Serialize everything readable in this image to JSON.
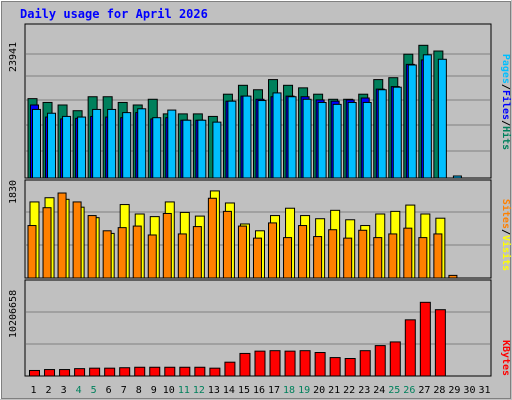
{
  "chart_data": [
    {
      "type": "bar",
      "title": "Daily usage for April 2026",
      "panel": "hits-files-pages",
      "ymax_label": "23941",
      "ymax": 23941,
      "categories": [
        "1",
        "2",
        "3",
        "4",
        "5",
        "6",
        "7",
        "8",
        "9",
        "10",
        "11",
        "12",
        "13",
        "14",
        "15",
        "16",
        "17",
        "18",
        "19",
        "20",
        "21",
        "22",
        "23",
        "24",
        "25",
        "26",
        "27",
        "28",
        "29",
        "30",
        "31"
      ],
      "legend": [
        "Pages",
        "Files",
        "Hits"
      ],
      "series": [
        {
          "name": "Hits",
          "color": "#00805c",
          "values": [
            12500,
            11900,
            11500,
            10600,
            12800,
            12800,
            11900,
            11500,
            12400,
            10100,
            10100,
            10100,
            9700,
            13200,
            14600,
            13900,
            15500,
            14600,
            14200,
            13200,
            12400,
            12400,
            13200,
            15500,
            15800,
            19500,
            20900,
            20000,
            0,
            0,
            0
          ]
        },
        {
          "name": "Files",
          "color": "#0000ff",
          "values": [
            11500,
            9600,
            9300,
            9400,
            9700,
            9600,
            9500,
            10300,
            9300,
            9500,
            9100,
            9100,
            0,
            12100,
            12900,
            12400,
            12800,
            12900,
            12800,
            12300,
            12100,
            12300,
            12600,
            14000,
            14400,
            17900,
            18600,
            0,
            0,
            0,
            0
          ]
        },
        {
          "name": "Pages",
          "color": "#00bfff",
          "values": [
            10800,
            10200,
            9700,
            9600,
            10800,
            10800,
            10300,
            10900,
            9500,
            10700,
            9100,
            9100,
            8800,
            12100,
            12900,
            12200,
            13400,
            12800,
            12400,
            11900,
            11600,
            11900,
            11900,
            13900,
            14300,
            17800,
            19400,
            18700,
            300,
            0,
            0
          ]
        }
      ]
    },
    {
      "type": "bar",
      "panel": "sites-visits",
      "ymax_label": "1830",
      "ymax": 1830,
      "categories": [
        "1",
        "2",
        "3",
        "4",
        "5",
        "6",
        "7",
        "8",
        "9",
        "10",
        "11",
        "12",
        "13",
        "14",
        "15",
        "16",
        "17",
        "18",
        "19",
        "20",
        "21",
        "22",
        "23",
        "24",
        "25",
        "26",
        "27",
        "28",
        "29",
        "30",
        "31"
      ],
      "legend": [
        "Sites",
        "Visits"
      ],
      "series": [
        {
          "name": "Visits",
          "color": "#ffff00",
          "values": [
            1450,
            1530,
            1500,
            1350,
            1150,
            850,
            1400,
            1220,
            1170,
            1450,
            1250,
            1180,
            1660,
            1430,
            1030,
            900,
            1190,
            1330,
            1190,
            1130,
            1290,
            1110,
            1000,
            1220,
            1270,
            1390,
            1220,
            1140,
            0,
            0,
            0
          ]
        },
        {
          "name": "Sites",
          "color": "#ff8000",
          "values": [
            1000,
            1340,
            1620,
            1450,
            1190,
            900,
            960,
            990,
            820,
            1230,
            840,
            980,
            1520,
            1270,
            990,
            760,
            1050,
            770,
            1000,
            790,
            920,
            760,
            910,
            770,
            840,
            950,
            770,
            840,
            50,
            0,
            0
          ]
        }
      ]
    },
    {
      "type": "bar",
      "panel": "kbytes",
      "ymax_label": "10206658",
      "ymax": 10206658,
      "categories": [
        "1",
        "2",
        "3",
        "4",
        "5",
        "6",
        "7",
        "8",
        "9",
        "10",
        "11",
        "12",
        "13",
        "14",
        "15",
        "16",
        "17",
        "18",
        "19",
        "20",
        "21",
        "22",
        "23",
        "24",
        "25",
        "26",
        "27",
        "28",
        "29",
        "30",
        "31"
      ],
      "legend": [
        "KBytes"
      ],
      "series": [
        {
          "name": "KBytes",
          "color": "#ff0000",
          "values": [
            600000,
            700000,
            700000,
            800000,
            850000,
            850000,
            900000,
            950000,
            950000,
            950000,
            950000,
            950000,
            850000,
            1500000,
            2450000,
            2700000,
            2750000,
            2700000,
            2750000,
            2550000,
            2000000,
            1900000,
            2750000,
            3300000,
            3700000,
            6100000,
            8000000,
            7200000,
            0,
            0,
            0
          ]
        }
      ]
    }
  ],
  "x_label_colors": {
    "weekday": "#000000",
    "weekend": "#00805c"
  },
  "weekend_days": [
    "4",
    "5",
    "11",
    "12",
    "18",
    "19",
    "25",
    "26"
  ]
}
